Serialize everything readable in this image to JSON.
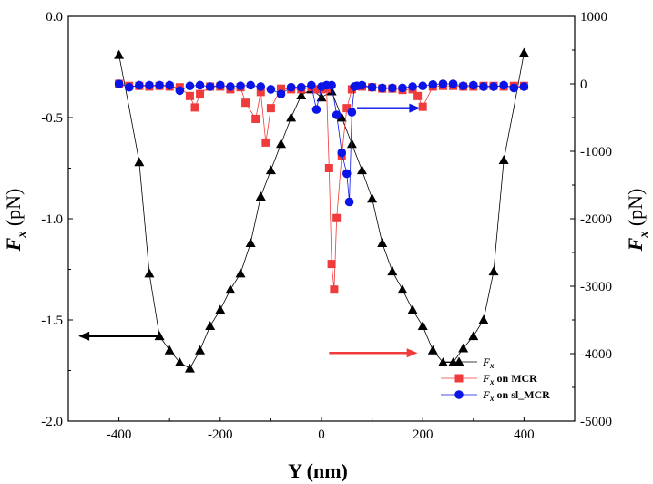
{
  "chart_data": {
    "type": "scatter",
    "xlabel": "Y (nm)",
    "ylabel_left": "F_x (pN)",
    "ylabel_right": "F_x (pN)",
    "xlim": [
      -500,
      500
    ],
    "ylim_left": [
      -2.0,
      0.0
    ],
    "ylim_right": [
      -5000,
      1000
    ],
    "x_ticks": [
      -400,
      -200,
      0,
      200,
      400
    ],
    "y_ticks_left": [
      0.0,
      -0.5,
      -1.0,
      -1.5,
      -2.0
    ],
    "y_ticks_left_labels": [
      "0.0",
      "-0.5",
      "-1.0",
      "-1.5",
      "-2.0"
    ],
    "y_ticks_right": [
      1000,
      0,
      -1000,
      -2000,
      -3000,
      -4000,
      -5000
    ],
    "y_ticks_right_labels": [
      "1000",
      "0",
      "-1000",
      "-2000",
      "-3000",
      "-4000",
      "-5000"
    ],
    "legend_position": "bottom-right",
    "series": [
      {
        "name": "F_x",
        "axis": "left",
        "color": "#000000",
        "marker": "triangle",
        "x": [
          -400,
          -380,
          -360,
          -340,
          -320,
          -300,
          -280,
          -260,
          -240,
          -220,
          -200,
          -180,
          -160,
          -140,
          -120,
          -100,
          -80,
          -60,
          -40,
          -20,
          0,
          20,
          40,
          60,
          80,
          100,
          120,
          140,
          160,
          180,
          200,
          220,
          240,
          260,
          280,
          300,
          320,
          340,
          360,
          380,
          400
        ],
        "y": [
          -0.19,
          -0.45,
          -0.72,
          -1.27,
          -1.58,
          -1.65,
          -1.71,
          -1.74,
          -1.65,
          -1.53,
          -1.45,
          -1.35,
          -1.27,
          -1.12,
          -0.89,
          -0.76,
          -0.63,
          -0.5,
          -0.39,
          -0.36,
          -0.4,
          -0.37,
          -0.5,
          -0.63,
          -0.76,
          -0.9,
          -1.12,
          -1.26,
          -1.35,
          -1.45,
          -1.53,
          -1.65,
          -1.71,
          -1.71,
          -1.64,
          -1.58,
          -1.5,
          -1.26,
          -0.71,
          -0.45,
          -0.18
        ],
        "marker_x": [
          -400,
          -360,
          -340,
          -320,
          -300,
          -280,
          -260,
          -240,
          -220,
          -200,
          -180,
          -160,
          -140,
          -120,
          -100,
          -80,
          -60,
          -40,
          -20,
          0,
          20,
          40,
          60,
          80,
          100,
          120,
          140,
          160,
          180,
          200,
          220,
          240,
          260,
          280,
          300,
          320,
          340,
          360,
          400
        ],
        "marker_y": [
          -0.19,
          -0.72,
          -1.27,
          -1.58,
          -1.65,
          -1.71,
          -1.74,
          -1.65,
          -1.53,
          -1.45,
          -1.35,
          -1.27,
          -1.12,
          -0.89,
          -0.76,
          -0.63,
          -0.5,
          -0.39,
          -0.36,
          -0.4,
          -0.37,
          -0.5,
          -0.63,
          -0.76,
          -0.9,
          -1.12,
          -1.26,
          -1.35,
          -1.45,
          -1.53,
          -1.65,
          -1.71,
          -1.71,
          -1.64,
          -1.58,
          -1.5,
          -1.26,
          -0.71,
          -0.18
        ]
      },
      {
        "name": "F_x on MCR",
        "axis": "right",
        "color": "#ef3b3b",
        "marker": "square",
        "x": [
          -400,
          -380,
          -360,
          -340,
          -320,
          -300,
          -280,
          -260,
          -250,
          -240,
          -220,
          -200,
          -180,
          -160,
          -150,
          -130,
          -120,
          -110,
          -100,
          -80,
          -60,
          -40,
          -20,
          -10,
          0,
          10,
          15,
          20,
          25,
          30,
          40,
          50,
          60,
          80,
          100,
          120,
          140,
          160,
          180,
          190,
          200,
          220,
          240,
          260,
          280,
          300,
          320,
          340,
          360,
          380,
          400
        ],
        "y": [
          0,
          -30,
          -30,
          -40,
          -30,
          -40,
          -50,
          -180,
          -350,
          -150,
          -40,
          -40,
          -80,
          -50,
          -280,
          -520,
          -120,
          -870,
          -360,
          -70,
          -80,
          -80,
          -50,
          -80,
          -80,
          -70,
          -1250,
          -2670,
          -3050,
          -1990,
          -1060,
          -360,
          -80,
          -40,
          -50,
          -70,
          -70,
          -90,
          -80,
          -180,
          -340,
          -40,
          -30,
          -30,
          -40,
          -40,
          -30,
          -30,
          -40,
          -30,
          -30
        ],
        "marker_x": [
          -400,
          -380,
          -360,
          -340,
          -320,
          -300,
          -280,
          -260,
          -250,
          -240,
          -220,
          -200,
          -180,
          -160,
          -150,
          -130,
          -120,
          -110,
          -100,
          -80,
          -60,
          -40,
          -20,
          -10,
          0,
          10,
          15,
          20,
          25,
          30,
          40,
          50,
          60,
          80,
          100,
          120,
          140,
          160,
          180,
          190,
          200,
          220,
          240,
          260,
          280,
          300,
          320,
          340,
          360,
          380,
          400
        ],
        "marker_y": [
          0,
          -30,
          -30,
          -40,
          -30,
          -40,
          -50,
          -180,
          -350,
          -150,
          -40,
          -40,
          -80,
          -50,
          -280,
          -520,
          -120,
          -870,
          -360,
          -70,
          -80,
          -80,
          -50,
          -80,
          -80,
          -70,
          -1250,
          -2670,
          -3050,
          -1990,
          -1060,
          -360,
          -80,
          -40,
          -50,
          -70,
          -70,
          -90,
          -80,
          -180,
          -340,
          -40,
          -30,
          -30,
          -40,
          -40,
          -30,
          -30,
          -40,
          -30,
          -30
        ]
      },
      {
        "name": "F_x on sl_MCR",
        "axis": "right",
        "color": "#0a14e6",
        "marker": "circle",
        "x": [
          -400,
          -380,
          -360,
          -340,
          -320,
          -300,
          -280,
          -260,
          -240,
          -220,
          -200,
          -180,
          -160,
          -140,
          -120,
          -100,
          -80,
          -60,
          -40,
          -20,
          -10,
          0,
          10,
          20,
          30,
          40,
          50,
          55,
          60,
          65,
          70,
          80,
          100,
          120,
          140,
          160,
          180,
          200,
          220,
          240,
          260,
          280,
          300,
          320,
          340,
          360,
          380,
          400
        ],
        "y": [
          0,
          -50,
          -20,
          -20,
          -20,
          -20,
          -100,
          -30,
          -20,
          -40,
          -20,
          -40,
          -30,
          -20,
          -40,
          -80,
          -150,
          -50,
          -50,
          -20,
          -380,
          -40,
          -20,
          -20,
          -460,
          -1020,
          -1330,
          -1750,
          -420,
          -40,
          -30,
          -20,
          -50,
          -60,
          -60,
          -60,
          -40,
          -30,
          -10,
          0,
          0,
          -30,
          -20,
          -40,
          -40,
          -20,
          -60,
          -40
        ],
        "marker_x": [
          -400,
          -380,
          -360,
          -340,
          -320,
          -300,
          -280,
          -260,
          -240,
          -220,
          -200,
          -180,
          -160,
          -140,
          -120,
          -100,
          -80,
          -60,
          -40,
          -20,
          -10,
          0,
          10,
          20,
          30,
          40,
          50,
          55,
          60,
          65,
          70,
          80,
          100,
          120,
          140,
          160,
          180,
          200,
          220,
          240,
          260,
          280,
          300,
          320,
          340,
          360,
          380,
          400
        ],
        "marker_y": [
          0,
          -50,
          -20,
          -20,
          -20,
          -20,
          -100,
          -30,
          -20,
          -40,
          -20,
          -40,
          -30,
          -20,
          -40,
          -80,
          -150,
          -50,
          -50,
          -20,
          -380,
          -40,
          -20,
          -20,
          -460,
          -1020,
          -1330,
          -1750,
          -420,
          -40,
          -30,
          -20,
          -50,
          -60,
          -60,
          -60,
          -40,
          -30,
          -10,
          0,
          0,
          -30,
          -20,
          -40,
          -40,
          -20,
          -60,
          -40
        ]
      }
    ],
    "annotations": [
      {
        "type": "arrow",
        "axis": "left",
        "color": "#000000",
        "from": [
          -320,
          -1.58
        ],
        "to": [
          -480,
          -1.58
        ]
      },
      {
        "type": "arrow",
        "axis": "right",
        "color": "#ef3b3b",
        "from": [
          15,
          -3990
        ],
        "to": [
          190,
          -3990
        ]
      },
      {
        "type": "arrow",
        "axis": "right",
        "color": "#0a14e6",
        "from": [
          70,
          -360
        ],
        "to": [
          195,
          -360
        ]
      }
    ]
  },
  "legend": {
    "items": [
      {
        "label_main": "F",
        "label_sub": "x",
        "label_rest": ""
      },
      {
        "label_main": "F",
        "label_sub": "x",
        "label_rest": " on MCR"
      },
      {
        "label_main": "F",
        "label_sub": "x",
        "label_rest": " on sl_MCR"
      }
    ]
  },
  "axis_text": {
    "left_main": "F",
    "left_sub": "x",
    "left_rest": " (pN)",
    "right_main": "F",
    "right_sub": "x",
    "right_rest": " (pN)",
    "x_title": "Y (nm)"
  }
}
